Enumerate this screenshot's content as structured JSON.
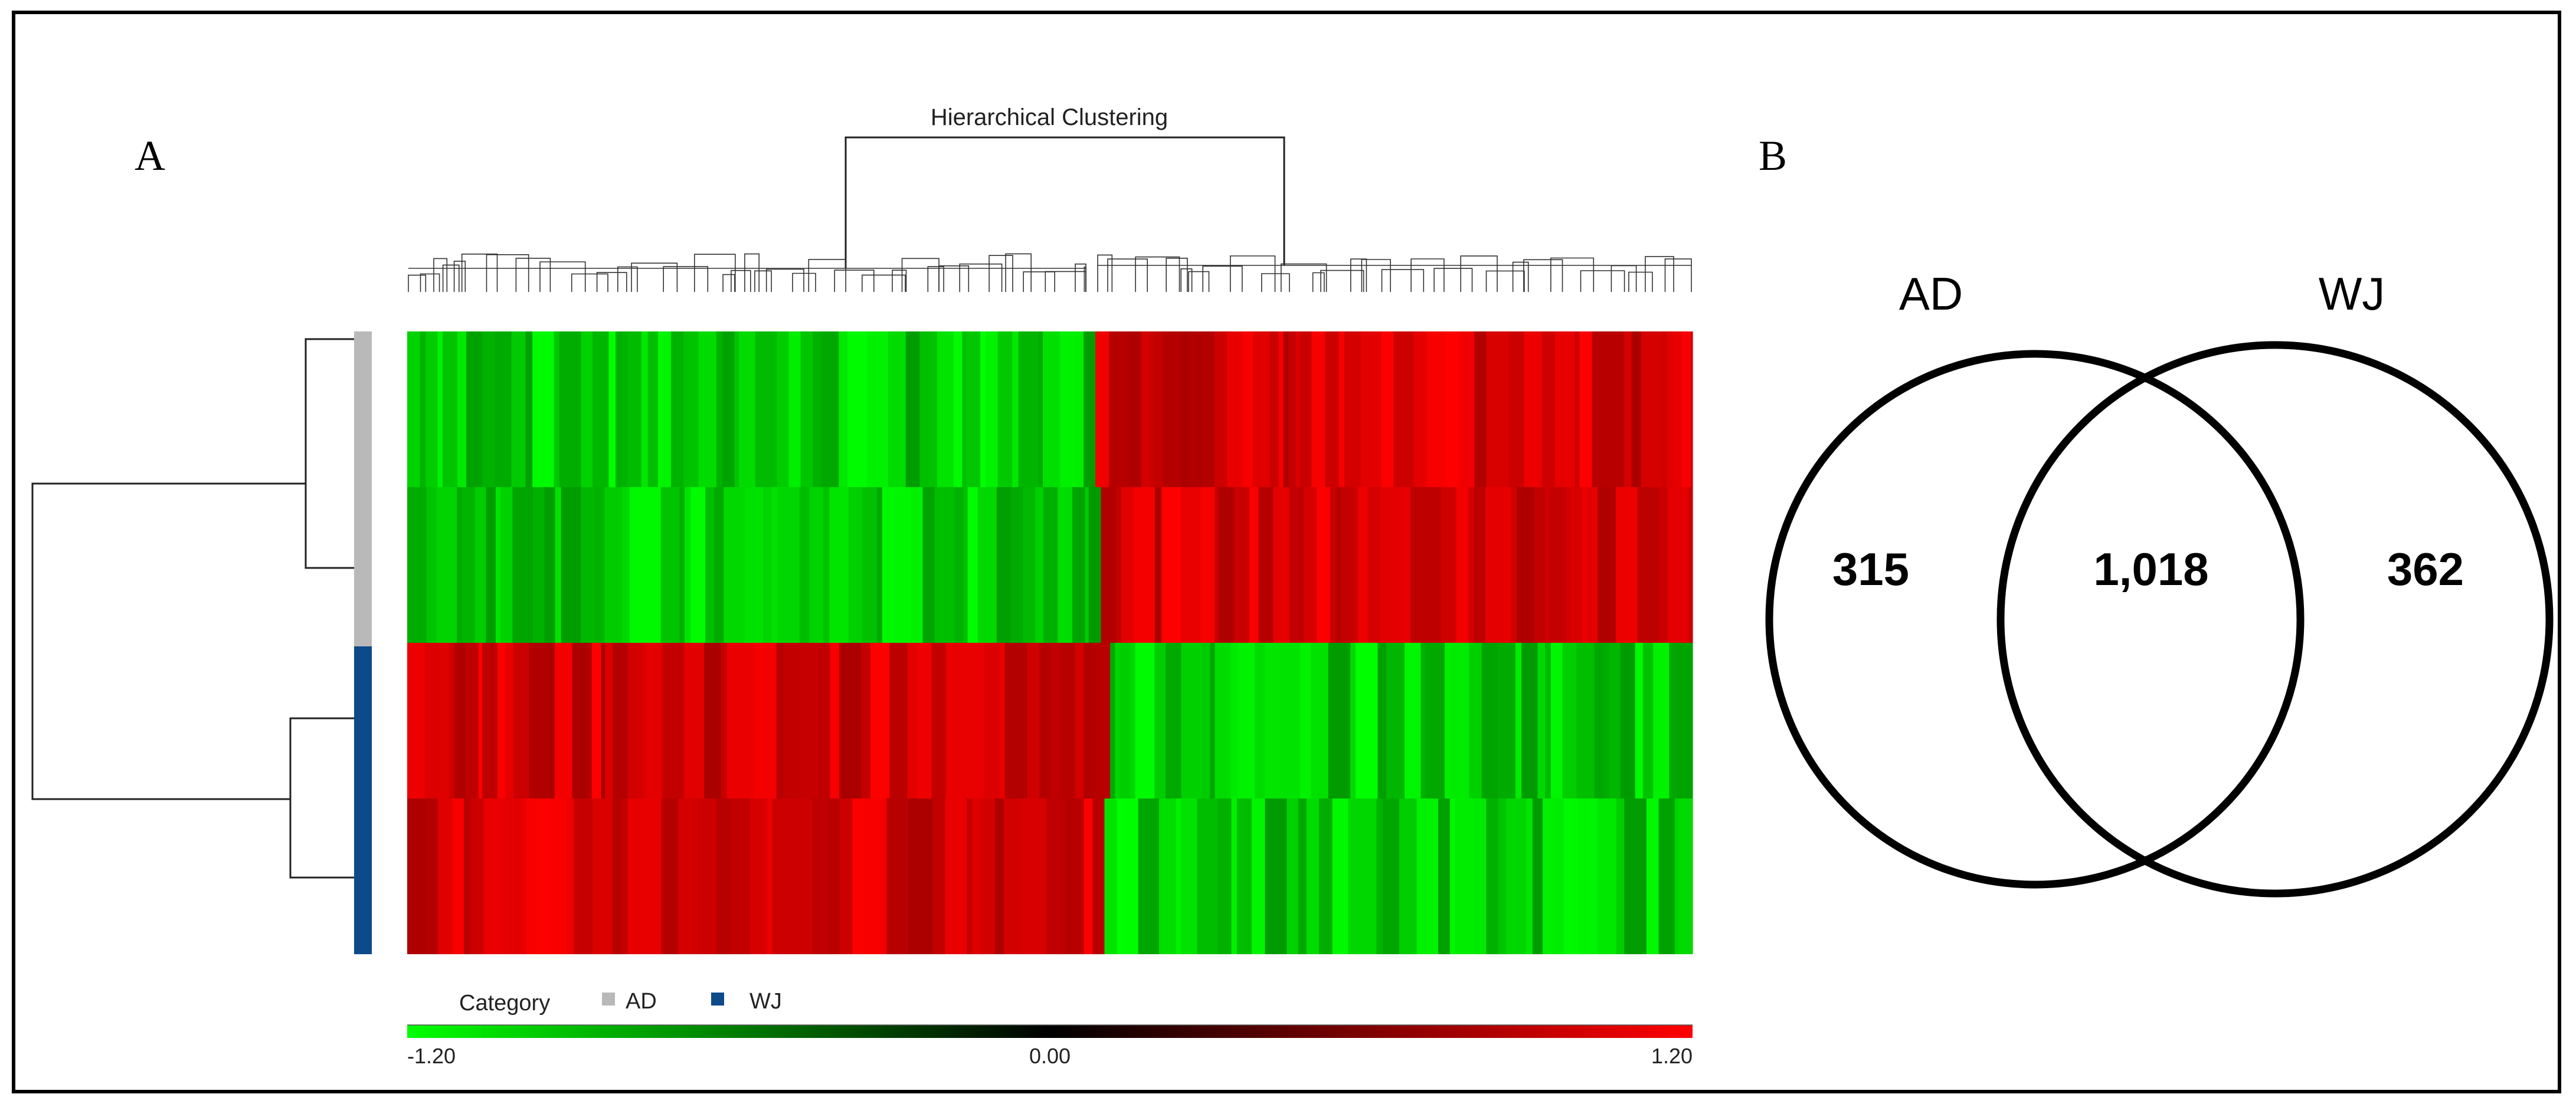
{
  "panel_a": {
    "label": "A",
    "title": "Hierarchical Clustering",
    "legend": {
      "title": "Category",
      "items": [
        {
          "label": "AD",
          "color": "#b9b9b9"
        },
        {
          "label": "WJ",
          "color": "#0d4a8a"
        }
      ]
    },
    "colorscale": {
      "min_label": "-1.20",
      "mid_label": "0.00",
      "max_label": "1.20",
      "min": -1.2,
      "max": 1.2,
      "low_color": "#00ff00",
      "mid_color": "#000000",
      "high_color": "#ff0000"
    },
    "heatmap": {
      "rows": 4,
      "row_groups": [
        "AD",
        "AD",
        "WJ",
        "WJ"
      ],
      "split_fraction": 0.535
    }
  },
  "panel_b": {
    "label": "B",
    "sets": [
      {
        "name": "AD",
        "unique": "315"
      },
      {
        "name": "WJ",
        "unique": "362"
      }
    ],
    "overlap": "1,018"
  }
}
